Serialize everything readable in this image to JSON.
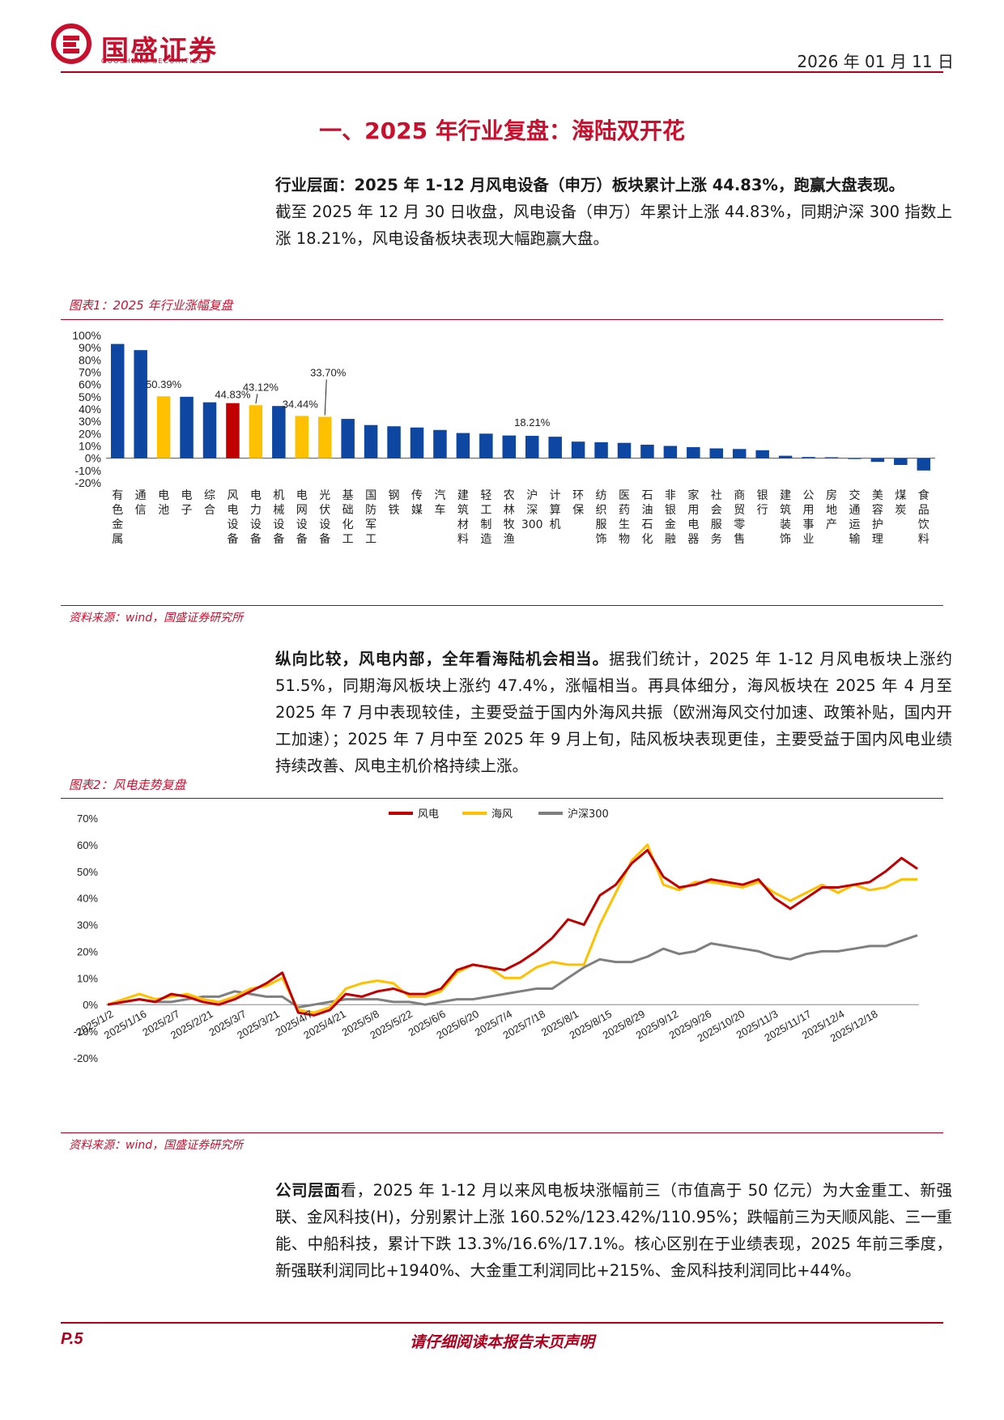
{
  "header": {
    "logo_text": "国盛证券",
    "logo_sub": "GUOSHENG SECURITIES",
    "date": "2026 年 01 月 11 日"
  },
  "section_title": "一、2025 年行业复盘：海陆双开花",
  "para1": {
    "lead": "行业层面：2025 年 1-12 月风电设备（申万）板块累计上涨 44.83%，跑赢大盘表现。",
    "body": "截至 2025 年 12 月 30 日收盘，风电设备（申万）年累计上涨 44.83%，同期沪深 300 指数上涨 18.21%，风电设备板块表现大幅跑赢大盘。"
  },
  "figure1": {
    "caption": "图表1：2025 年行业涨幅复盘",
    "source": "资料来源：wind，国盛证券研究所"
  },
  "para2": {
    "lead": "纵向比较，风电内部，全年看海陆机会相当。",
    "body": "据我们统计，2025 年 1-12 月风电板块上涨约 51.5%，同期海风板块上涨约 47.4%，涨幅相当。再具体细分，海风板块在 2025 年 4 月至 2025 年 7 月中表现较佳，主要受益于国内外海风共振（欧洲海风交付加速、政策补贴，国内开工加速）；2025 年 7 月中至 2025 年 9 月上旬，陆风板块表现更佳，主要受益于国内风电业绩持续改善、风电主机价格持续上涨。"
  },
  "figure2": {
    "caption": "图表2：风电走势复盘",
    "source": "资料来源：wind，国盛证券研究所"
  },
  "para3": {
    "lead": "公司层面",
    "body": "公司层面看，2025 年 1-12 月以来风电板块涨幅前三（市值高于 50 亿元）为大金重工、新强联、金风科技(H)，分别累计上涨 160.52%/123.42%/110.95%；跌幅前三为天顺风能、三一重能、中船科技，累计下跌 13.3%/16.6%/17.1%。核心区别在于业绩表现，2025 年前三季度，新强联利润同比+1940%、大金重工利润同比+215%、金风科技利润同比+44%。"
  },
  "footer": {
    "page": "P.5",
    "note": "请仔细阅读本报告末页声明"
  },
  "chart_data": [
    {
      "type": "bar",
      "title": "",
      "categories": [
        "有色金属",
        "通信",
        "电池",
        "电子",
        "综合",
        "风电设备",
        "电力设备",
        "机械设备",
        "电网设备",
        "光伏设备",
        "基础化工",
        "国防军工",
        "钢铁",
        "传媒",
        "汽车",
        "建筑材料",
        "轻工制造",
        "农林牧渔",
        "沪深300",
        "计算机",
        "环保",
        "纺织服饰",
        "医药生物",
        "石油石化",
        "非银金融",
        "家用电器",
        "社会服务",
        "商贸零售",
        "银行",
        "建筑装饰",
        "公用事业",
        "房地产",
        "交通运输",
        "美容护理",
        "煤炭",
        "食品饮料"
      ],
      "values": [
        93,
        88,
        50.39,
        50,
        45.5,
        44.83,
        43.12,
        42.5,
        34.44,
        33.7,
        32,
        27,
        26,
        25,
        23,
        20.5,
        20,
        18.5,
        18.21,
        17.5,
        13.5,
        13,
        12.5,
        11,
        10,
        9,
        8,
        7.5,
        6.5,
        2,
        1,
        0.8,
        0,
        -3,
        -5.5,
        -10
      ],
      "data_labels": {
        "2": "50.39%",
        "5": "44.83%",
        "6": "43.12%",
        "8": "34.44%",
        "9": "33.70%",
        "18": "18.21%"
      },
      "colors": {
        "default": "#0d47a1",
        "wind": "#c00000",
        "highlight": "#ffc000"
      },
      "highlight_indices": [
        2,
        6,
        8,
        9
      ],
      "wind_index": 5,
      "yticks": [
        "100%",
        "90%",
        "80%",
        "70%",
        "60%",
        "50%",
        "40%",
        "30%",
        "20%",
        "10%",
        "0%",
        "-10%",
        "-20%"
      ],
      "ylim": [
        -20,
        100
      ]
    },
    {
      "type": "line",
      "title": "",
      "x_ticks": [
        "2025/1/2",
        "2025/1/16",
        "2025/2/7",
        "2025/2/21",
        "2025/3/7",
        "2025/3/21",
        "2025/4/7",
        "2025/4/21",
        "2025/5/8",
        "2025/5/22",
        "2025/6/6",
        "2025/6/20",
        "2025/7/4",
        "2025/7/18",
        "2025/8/1",
        "2025/8/15",
        "2025/8/29",
        "2025/9/12",
        "2025/9/26",
        "2025/10/20",
        "2025/11/3",
        "2025/11/17",
        "2025/12/4",
        "2025/12/18"
      ],
      "yticks": [
        "70%",
        "60%",
        "50%",
        "40%",
        "30%",
        "20%",
        "10%",
        "0%",
        "-10%",
        "-20%"
      ],
      "ylim": [
        -20,
        70
      ],
      "series": [
        {
          "name": "风电",
          "color": "#c00000",
          "values": [
            0,
            1,
            2,
            1,
            4,
            3,
            1,
            0,
            2,
            5,
            8,
            12,
            -3,
            -4,
            -2,
            4,
            3,
            5,
            6,
            4,
            4,
            6,
            13,
            15,
            14,
            13,
            16,
            20,
            25,
            32,
            30,
            41,
            45,
            53,
            58,
            48,
            44,
            45,
            47,
            46,
            45,
            47,
            40,
            36,
            40,
            44,
            44,
            45,
            46,
            50,
            55,
            51
          ]
        },
        {
          "name": "海风",
          "color": "#ffc000",
          "values": [
            0,
            2,
            4,
            2,
            3,
            4,
            2,
            1,
            3,
            6,
            7,
            10,
            -2,
            -3,
            -1,
            6,
            8,
            9,
            8,
            3,
            3,
            5,
            12,
            15,
            14,
            10,
            10,
            14,
            16,
            15,
            15,
            30,
            42,
            54,
            60,
            45,
            43,
            46,
            46,
            45,
            44,
            46,
            42,
            39,
            42,
            45,
            42,
            45,
            43,
            44,
            47,
            47
          ]
        },
        {
          "name": "沪深300",
          "color": "#7f7f7f",
          "values": [
            0,
            1,
            2,
            1,
            1,
            2,
            3,
            3,
            5,
            4,
            3,
            3,
            -1,
            0,
            1,
            2,
            2,
            2,
            1,
            1,
            0,
            1,
            2,
            2,
            3,
            4,
            5,
            6,
            6,
            10,
            14,
            17,
            16,
            16,
            18,
            21,
            19,
            20,
            23,
            22,
            21,
            20,
            18,
            17,
            19,
            20,
            20,
            21,
            22,
            22,
            24,
            26
          ]
        }
      ],
      "legend": "top-center"
    }
  ]
}
